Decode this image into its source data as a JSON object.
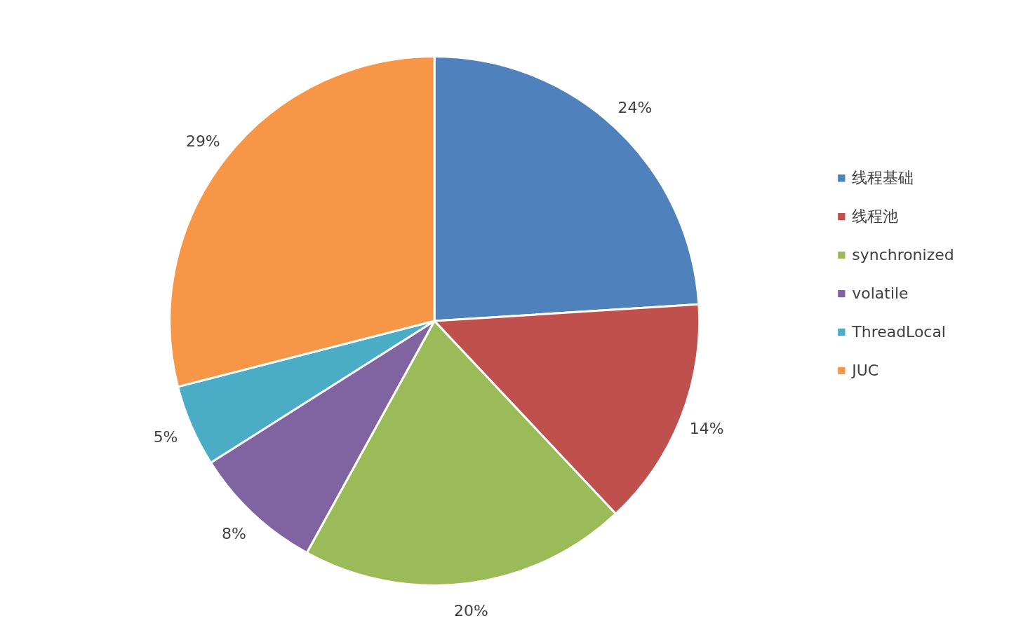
{
  "chart_data": {
    "type": "pie",
    "categories": [
      "线程基础",
      "线程池",
      "synchronized",
      "volatile",
      "ThreadLocal",
      "JUC"
    ],
    "values": [
      24,
      14,
      20,
      8,
      5,
      29
    ],
    "value_labels": [
      "24%",
      "14%",
      "20%",
      "8%",
      "5%",
      "29%"
    ],
    "colors": [
      "#4f81bd",
      "#c0504d",
      "#9bbb59",
      "#8064a2",
      "#4bacc6",
      "#f79646"
    ],
    "legend": "right"
  }
}
